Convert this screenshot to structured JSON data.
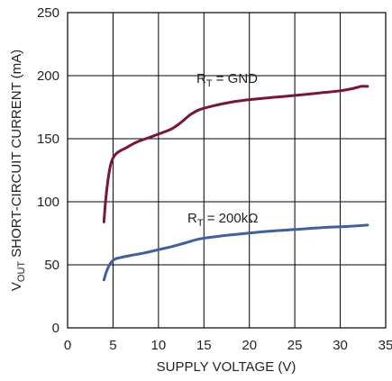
{
  "chart_data": {
    "type": "line",
    "title": "",
    "xlabel": "SUPPLY VOLTAGE (V)",
    "ylabel": {
      "prefix": "V",
      "subscript": "OUT",
      "suffix": " SHORT-CIRCUIT CURRENT (mA)"
    },
    "xlim": [
      0,
      35
    ],
    "ylim": [
      0,
      250
    ],
    "xticks": [
      "0",
      "5",
      "10",
      "15",
      "20",
      "25",
      "30",
      "35"
    ],
    "yticks": [
      "0",
      "50",
      "100",
      "150",
      "200",
      "250"
    ],
    "grid": true,
    "series": [
      {
        "name": {
          "prefix": "R",
          "subscript": "T",
          "suffix": " = GND"
        },
        "color": "#7b1530",
        "x": [
          4.0,
          4.2,
          4.5,
          4.8,
          5.2,
          5.7,
          6.5,
          7.5,
          9.0,
          10.5,
          11.5,
          12.5,
          13.5,
          14.5,
          16.0,
          18.0,
          20.0,
          23.0,
          26.0,
          28.0,
          30.0,
          31.5,
          32.3,
          33.0
        ],
        "y": [
          84,
          102,
          120,
          131,
          137,
          140,
          143,
          147,
          151,
          155,
          158,
          163,
          169,
          173,
          176,
          179,
          181,
          183,
          185,
          186.5,
          188,
          190,
          191.5,
          191.5
        ]
      },
      {
        "name": {
          "prefix": "R",
          "subscript": "T",
          "suffix": " = 200kΩ"
        },
        "color": "#3d5fa3",
        "x": [
          4.0,
          4.3,
          4.7,
          5.2,
          6.0,
          7.0,
          8.5,
          10.0,
          11.5,
          13.0,
          14.5,
          16.5,
          19.0,
          22.0,
          25.0,
          28.0,
          31.0,
          33.0
        ],
        "y": [
          38,
          45,
          51,
          54.5,
          56,
          57.5,
          59.5,
          62,
          64.5,
          67.5,
          70.5,
          72.5,
          74.5,
          76.5,
          78,
          79.5,
          80.5,
          81.5
        ]
      }
    ]
  }
}
